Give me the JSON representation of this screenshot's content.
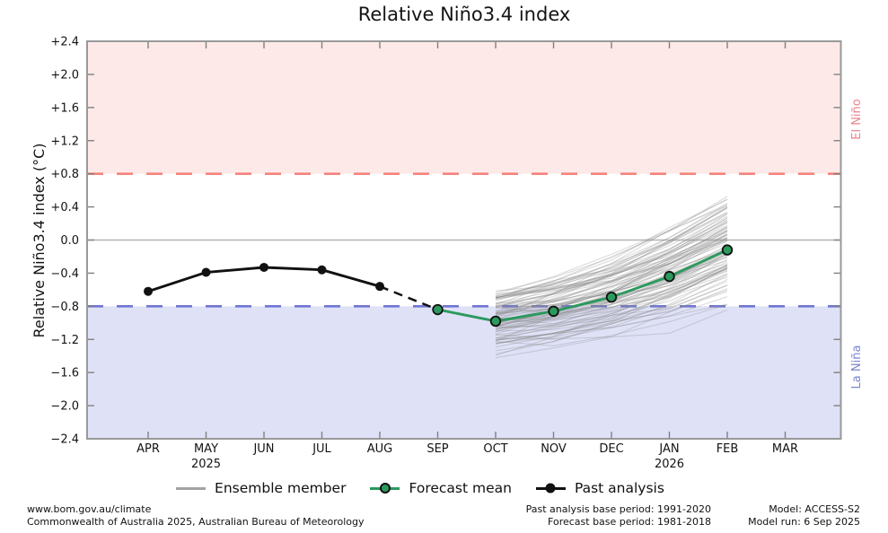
{
  "title": "Relative Niño3.4 index",
  "side_labels": {
    "el_nino": "El Niño",
    "la_nina": "La Niña"
  },
  "legend": {
    "items": [
      {
        "label": "Ensemble member",
        "swatch": "gray-line"
      },
      {
        "label": "Forecast mean",
        "swatch": "green-line-circle"
      },
      {
        "label": "Past analysis",
        "swatch": "black-line-dot"
      }
    ]
  },
  "footer": {
    "left_line1": "www.bom.gov.au/climate",
    "left_line2": "Commonwealth of Australia 2025, Australian Bureau of Meteorology",
    "center_line1": "Past analysis base period: 1991-2020",
    "center_line2": "Forecast base period: 1981-2018",
    "right_line1": "Model: ACCESS-S2",
    "right_line2": "Model run: 6 Sep 2025"
  },
  "chart_data": {
    "type": "line",
    "title": "Relative Niño3.4 index",
    "ylabel": "Relative Niño3.4 index (°C)",
    "ylim": [
      -2.4,
      2.4
    ],
    "grid": false,
    "legend_position": "bottom",
    "months": [
      {
        "label": "APR"
      },
      {
        "label": "MAY",
        "year": "2025"
      },
      {
        "label": "JUN"
      },
      {
        "label": "JUL"
      },
      {
        "label": "AUG"
      },
      {
        "label": "SEP"
      },
      {
        "label": "OCT"
      },
      {
        "label": "NOV"
      },
      {
        "label": "DEC"
      },
      {
        "label": "JAN",
        "year": "2026"
      },
      {
        "label": "FEB"
      },
      {
        "label": "MAR"
      }
    ],
    "yticks": [
      {
        "v": 2.4,
        "label": "+2.4"
      },
      {
        "v": 2.0,
        "label": "+2.0"
      },
      {
        "v": 1.6,
        "label": "+1.6"
      },
      {
        "v": 1.2,
        "label": "+1.2"
      },
      {
        "v": 0.8,
        "label": "+0.8"
      },
      {
        "v": 0.4,
        "label": "+0.4"
      },
      {
        "v": 0.0,
        "label": "0.0"
      },
      {
        "v": -0.4,
        "label": "−0.4"
      },
      {
        "v": -0.8,
        "label": "−0.8"
      },
      {
        "v": -1.2,
        "label": "−1.2"
      },
      {
        "v": -1.6,
        "label": "−1.6"
      },
      {
        "v": -2.0,
        "label": "−2.0"
      },
      {
        "v": -2.4,
        "label": "−2.4"
      }
    ],
    "bands": [
      {
        "name": "El Niño",
        "from": 0.8,
        "to": 2.4,
        "color": "#fdeae8"
      },
      {
        "name": "La Niña",
        "from": -2.4,
        "to": -0.8,
        "color": "#dfe1f7"
      }
    ],
    "reference_lines": [
      {
        "name": "el-nino-threshold",
        "v": 0.8,
        "color": "#f8837d",
        "style": "dashed"
      },
      {
        "name": "zero-line",
        "v": 0.0,
        "color": "#b5b5b5",
        "style": "solid"
      },
      {
        "name": "la-nina-threshold",
        "v": -0.8,
        "color": "#7177d3",
        "style": "dashed"
      }
    ],
    "series": [
      {
        "name": "Past analysis",
        "color": "#111111",
        "style": "solid",
        "marker": "dot",
        "months": [
          "APR",
          "MAY",
          "JUN",
          "JUL",
          "AUG"
        ],
        "values": [
          -0.62,
          -0.39,
          -0.33,
          -0.36,
          -0.56
        ]
      },
      {
        "name": "Past analysis to forecast transition",
        "color": "#111111",
        "style": "dashed",
        "marker": "none",
        "months": [
          "AUG",
          "SEP"
        ],
        "values": [
          -0.56,
          -0.84
        ]
      },
      {
        "name": "Forecast mean",
        "color": "#2c995d",
        "style": "solid",
        "marker": "circle",
        "months": [
          "SEP",
          "OCT",
          "NOV",
          "DEC",
          "JAN",
          "FEB"
        ],
        "values": [
          -0.84,
          -0.98,
          -0.86,
          -0.69,
          -0.44,
          -0.12
        ]
      }
    ],
    "ensemble": {
      "name": "Ensemble member",
      "color": "#8a8a8a",
      "count": 99,
      "seed": 7,
      "months": [
        "OCT",
        "NOV",
        "DEC",
        "JAN",
        "FEB"
      ],
      "mean": [
        -0.98,
        -0.86,
        -0.69,
        -0.44,
        -0.12
      ],
      "spread": [
        0.45,
        0.62,
        0.75,
        0.9,
        1.0
      ],
      "clip_min": -1.48,
      "clip_max": 0.78
    }
  }
}
